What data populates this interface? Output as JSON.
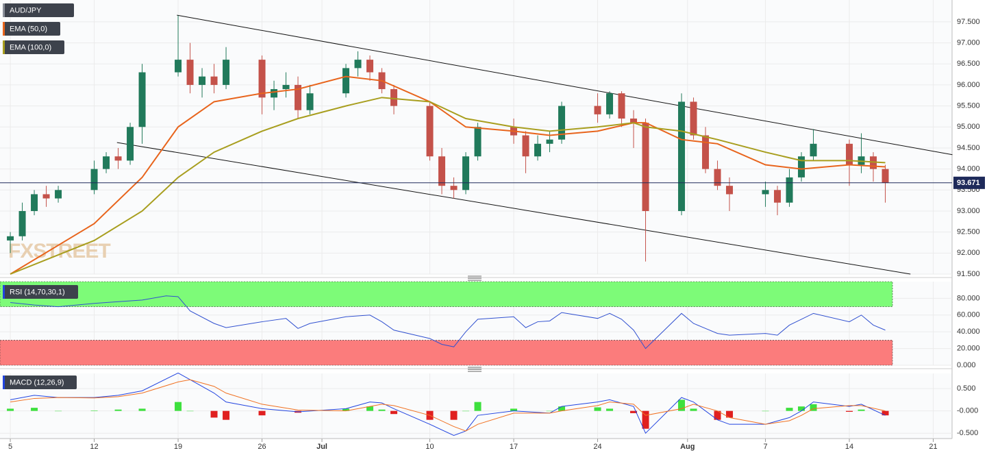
{
  "chart_data": [
    {
      "type": "candlestick",
      "title": "AUD/JPY",
      "watermark": "FXSTREET",
      "xlim": [
        -0.86,
        78.57
      ],
      "ylim": [
        91.5,
        98.02
      ],
      "grid": true,
      "yticks": [
        {
          "value": 91.5,
          "label": "91.500"
        },
        {
          "value": 92,
          "label": "92.000"
        },
        {
          "value": 92.5,
          "label": "92.500"
        },
        {
          "value": 93,
          "label": "93.000"
        },
        {
          "value": 93.5,
          "label": "93.500"
        },
        {
          "value": 94,
          "label": "94.000"
        },
        {
          "value": 94.5,
          "label": "94.500"
        },
        {
          "value": 95,
          "label": "95.000"
        },
        {
          "value": 95.5,
          "label": "95.500"
        },
        {
          "value": 96,
          "label": "96.000"
        },
        {
          "value": 96.5,
          "label": "96.500"
        },
        {
          "value": 97,
          "label": "97.000"
        },
        {
          "value": 97.5,
          "label": "97.500"
        }
      ],
      "candles": {
        "up_color": "#217a5b",
        "down_color": "#c4524a",
        "x": [
          0,
          1,
          2,
          3,
          4,
          7,
          8,
          9,
          10,
          11,
          14,
          15,
          16,
          17,
          18,
          21,
          22,
          23,
          24,
          25,
          28,
          29,
          30,
          31,
          32,
          35,
          36,
          37,
          38,
          39,
          42,
          43,
          44,
          45,
          46,
          49,
          50,
          51,
          52,
          53,
          56,
          57,
          58,
          59,
          60,
          63,
          64,
          65,
          66,
          67,
          70,
          71,
          72,
          73
        ],
        "open": [
          92.3,
          92.4,
          93.0,
          93.4,
          93.3,
          93.5,
          94.0,
          94.3,
          94.2,
          95.0,
          96.3,
          96.6,
          96.0,
          96.2,
          96.0,
          96.6,
          95.7,
          95.9,
          96.0,
          95.4,
          95.8,
          96.4,
          96.6,
          96.3,
          95.9,
          95.5,
          94.3,
          93.6,
          93.5,
          94.3,
          95.0,
          94.8,
          94.3,
          94.6,
          94.7,
          95.5,
          95.3,
          95.8,
          95.2,
          95.1,
          93.0,
          95.6,
          94.8,
          94.0,
          93.6,
          93.4,
          93.5,
          93.2,
          93.8,
          94.3,
          94.6,
          94.1,
          94.3,
          94.0
        ],
        "high": [
          92.5,
          93.2,
          93.5,
          93.6,
          93.6,
          94.2,
          94.4,
          94.5,
          95.1,
          96.5,
          97.65,
          97.0,
          96.4,
          96.5,
          96.9,
          96.7,
          96.1,
          96.3,
          96.2,
          96.0,
          96.5,
          96.8,
          96.7,
          96.4,
          96.0,
          95.6,
          94.5,
          93.8,
          94.4,
          95.1,
          95.2,
          94.9,
          94.8,
          94.9,
          95.6,
          95.8,
          95.85,
          95.85,
          95.4,
          95.2,
          95.8,
          95.7,
          95.0,
          94.2,
          93.8,
          93.7,
          93.6,
          94.0,
          94.4,
          94.95,
          94.7,
          94.85,
          94.4,
          94.1
        ],
        "low": [
          92.0,
          92.3,
          92.9,
          93.1,
          93.2,
          93.4,
          93.9,
          94.0,
          94.1,
          94.6,
          96.2,
          95.8,
          95.7,
          95.8,
          95.9,
          95.3,
          95.4,
          95.7,
          95.2,
          95.3,
          95.7,
          96.2,
          96.1,
          95.8,
          95.3,
          94.2,
          93.4,
          93.3,
          93.4,
          94.2,
          94.6,
          93.9,
          94.2,
          94.4,
          94.6,
          95.1,
          95.2,
          95.0,
          94.5,
          91.8,
          92.9,
          94.7,
          93.9,
          93.5,
          93.0,
          93.1,
          92.9,
          93.1,
          93.7,
          94.2,
          93.6,
          93.9,
          93.7,
          93.2
        ],
        "close": [
          92.4,
          93.0,
          93.4,
          93.3,
          93.5,
          94.0,
          94.3,
          94.2,
          95.0,
          96.3,
          96.6,
          96.0,
          96.2,
          96.0,
          96.6,
          95.7,
          95.9,
          96.0,
          95.4,
          95.8,
          96.4,
          96.6,
          96.3,
          95.9,
          95.5,
          94.3,
          93.6,
          93.5,
          94.3,
          95.0,
          94.8,
          94.3,
          94.6,
          94.7,
          95.5,
          95.3,
          95.8,
          95.2,
          95.1,
          93.0,
          95.6,
          94.8,
          94.0,
          93.6,
          93.4,
          93.5,
          93.2,
          93.8,
          94.3,
          94.6,
          94.1,
          94.3,
          94.0,
          93.671
        ]
      },
      "series": [
        {
          "name": "EMA (50,0)",
          "color": "#e8641c",
          "x": [
            0,
            7,
            11,
            14,
            17,
            21,
            24,
            28,
            31,
            35,
            38,
            42,
            45,
            49,
            52,
            53,
            56,
            59,
            63,
            66,
            70,
            73
          ],
          "values": [
            91.5,
            92.7,
            93.8,
            95.0,
            95.6,
            95.8,
            95.9,
            96.2,
            96.1,
            95.6,
            95.0,
            94.9,
            94.8,
            94.9,
            95.1,
            95.1,
            94.7,
            94.6,
            94.1,
            94.0,
            94.1,
            94.05
          ]
        },
        {
          "name": "EMA (100,0)",
          "color": "#a89e1e",
          "x": [
            0,
            7,
            11,
            14,
            17,
            21,
            24,
            28,
            31,
            35,
            38,
            42,
            45,
            49,
            52,
            53,
            56,
            59,
            63,
            66,
            70,
            73
          ],
          "values": [
            91.5,
            92.3,
            93.0,
            93.8,
            94.4,
            94.9,
            95.2,
            95.5,
            95.7,
            95.6,
            95.2,
            95.0,
            94.9,
            95.0,
            95.1,
            95.0,
            94.9,
            94.7,
            94.4,
            94.2,
            94.2,
            94.15
          ]
        }
      ],
      "trendlines": [
        {
          "x": [
            13.9,
            78.6
          ],
          "y": [
            97.66,
            94.34
          ]
        },
        {
          "x": [
            8.9,
            75.1
          ],
          "y": [
            94.63,
            91.5
          ]
        }
      ],
      "last_price": 93.671,
      "last_price_color": "#1e2a5a"
    },
    {
      "type": "line",
      "title": "RSI (14,70,30,1)",
      "ylim": [
        0,
        100
      ],
      "yticks": [
        {
          "value": 0,
          "label": "0.000"
        },
        {
          "value": 20,
          "label": "20.000"
        },
        {
          "value": 40,
          "label": "40.000"
        },
        {
          "value": 60,
          "label": "60.000"
        },
        {
          "value": 80,
          "label": "80.000"
        }
      ],
      "bands": [
        {
          "from": 70,
          "to": 100,
          "color": "#7dfb78"
        },
        {
          "from": 0,
          "to": 30,
          "color": "#fb7c7c"
        }
      ],
      "series": [
        {
          "color": "#3050d0",
          "x": [
            0,
            2,
            4,
            7,
            9,
            11,
            13,
            14,
            15,
            17,
            18,
            21,
            23,
            24,
            25,
            28,
            30,
            31,
            32,
            35,
            36,
            37,
            38,
            39,
            42,
            43,
            44,
            45,
            46,
            49,
            50,
            51,
            52,
            53,
            56,
            57,
            58,
            59,
            60,
            63,
            64,
            65,
            66,
            67,
            70,
            71,
            72,
            73
          ],
          "values": [
            75,
            72,
            70,
            74,
            76,
            78,
            83,
            82,
            65,
            50,
            45,
            52,
            56,
            44,
            50,
            58,
            60,
            52,
            42,
            32,
            25,
            22,
            40,
            55,
            58,
            45,
            52,
            53,
            63,
            56,
            62,
            55,
            42,
            20,
            62,
            50,
            44,
            38,
            36,
            38,
            36,
            48,
            55,
            62,
            52,
            60,
            48,
            42
          ]
        }
      ]
    },
    {
      "type": "macd",
      "title": "MACD (12,26,9)",
      "xlim": [
        -0.86,
        78.57
      ],
      "ylim": [
        -0.62,
        0.84
      ],
      "yticks": [
        {
          "value": -0.5,
          "label": "-0.500"
        },
        {
          "value": 0,
          "label": "-0.000"
        },
        {
          "value": 0.5,
          "label": "0.500"
        }
      ],
      "xticks": [
        {
          "value": 0,
          "label": "5"
        },
        {
          "value": 7,
          "label": "12"
        },
        {
          "value": 14,
          "label": "19"
        },
        {
          "value": 21,
          "label": "26"
        },
        {
          "value": 26,
          "label": "Jul"
        },
        {
          "value": 35,
          "label": "10"
        },
        {
          "value": 42,
          "label": "17"
        },
        {
          "value": 49,
          "label": "24"
        },
        {
          "value": 56.5,
          "label": "Aug"
        },
        {
          "value": 63,
          "label": "7"
        },
        {
          "value": 70,
          "label": "14"
        },
        {
          "value": 77,
          "label": "21"
        }
      ],
      "series": [
        {
          "color": "#2244e0",
          "x": [
            0,
            2,
            4,
            7,
            9,
            11,
            14,
            15,
            17,
            18,
            21,
            24,
            28,
            30,
            31,
            32,
            35,
            37,
            38,
            39,
            42,
            45,
            46,
            49,
            50,
            52,
            53,
            56,
            57,
            59,
            60,
            63,
            65,
            66,
            67,
            70,
            71,
            73
          ],
          "values": [
            0.25,
            0.35,
            0.3,
            0.3,
            0.35,
            0.45,
            0.85,
            0.7,
            0.4,
            0.2,
            0.05,
            -0.02,
            0.05,
            0.2,
            0.18,
            0.05,
            -0.3,
            -0.55,
            -0.45,
            -0.1,
            0.0,
            -0.05,
            0.1,
            0.2,
            0.25,
            0.1,
            -0.5,
            0.3,
            0.2,
            -0.2,
            -0.3,
            -0.3,
            -0.15,
            0.0,
            0.2,
            0.1,
            0.15,
            -0.1
          ]
        },
        {
          "color": "#f07020",
          "x": [
            0,
            2,
            4,
            7,
            9,
            11,
            14,
            15,
            17,
            18,
            21,
            24,
            28,
            30,
            31,
            32,
            35,
            37,
            38,
            39,
            42,
            45,
            46,
            49,
            50,
            52,
            53,
            56,
            57,
            59,
            60,
            63,
            65,
            66,
            67,
            70,
            71,
            73
          ],
          "values": [
            0.2,
            0.28,
            0.3,
            0.29,
            0.32,
            0.4,
            0.65,
            0.7,
            0.55,
            0.4,
            0.15,
            0.02,
            0.0,
            0.1,
            0.15,
            0.12,
            -0.1,
            -0.35,
            -0.45,
            -0.3,
            -0.05,
            -0.05,
            0.0,
            0.12,
            0.2,
            0.15,
            -0.1,
            0.05,
            0.15,
            0.0,
            -0.15,
            -0.3,
            -0.22,
            -0.1,
            0.05,
            0.12,
            0.12,
            0.0
          ]
        }
      ],
      "histogram": {
        "up_color": "#3ee03e",
        "down_color": "#e02020",
        "x": [
          0,
          2,
          4,
          7,
          9,
          11,
          14,
          15,
          17,
          18,
          21,
          24,
          28,
          30,
          31,
          32,
          35,
          37,
          38,
          39,
          42,
          45,
          46,
          49,
          50,
          52,
          53,
          56,
          57,
          59,
          60,
          63,
          65,
          66,
          67,
          70,
          71,
          73
        ],
        "values": [
          0.05,
          0.07,
          0,
          0.01,
          0.03,
          0.05,
          0.2,
          0,
          -0.15,
          -0.2,
          -0.1,
          -0.04,
          0.05,
          0.1,
          0.03,
          -0.07,
          -0.2,
          -0.2,
          0,
          0.2,
          0.05,
          0,
          0.1,
          0.08,
          0.05,
          -0.05,
          -0.4,
          0.25,
          0.05,
          -0.2,
          -0.15,
          0,
          0.07,
          0.1,
          0.15,
          -0.02,
          0.03,
          -0.1
        ]
      }
    }
  ]
}
